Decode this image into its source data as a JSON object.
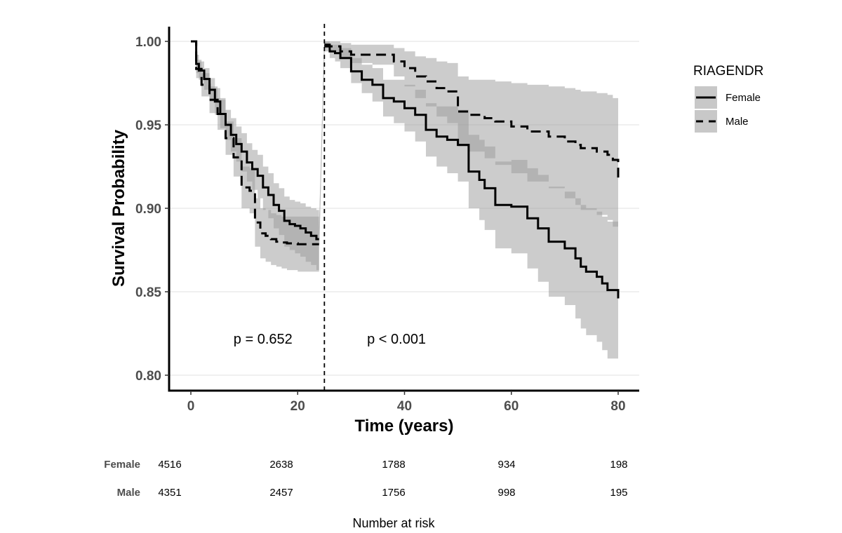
{
  "chart_data": {
    "type": "line",
    "chart_subtype": "kaplan-meier step survival curves with confidence bands",
    "xlabel": "Time (years)",
    "ylabel": "Survival Probability",
    "xlim": [
      -4,
      84
    ],
    "ylim": [
      0.79,
      1.01
    ],
    "x_ticks": [
      0,
      20,
      40,
      60,
      80
    ],
    "x_tick_labels": [
      "0",
      "20",
      "40",
      "60",
      "80"
    ],
    "y_ticks": [
      0.8,
      0.85,
      0.9,
      0.95,
      1.0
    ],
    "y_tick_labels": [
      "0.80",
      "0.85",
      "0.90",
      "0.95",
      "1.00"
    ],
    "grid": "horizontal major gridlines",
    "cutpoint_x": 25,
    "annotations": [
      {
        "text": "p = 0.652",
        "x": 13.5,
        "y": 0.819
      },
      {
        "text": "p < 0.001",
        "x": 38.5,
        "y": 0.819
      }
    ],
    "legend": {
      "title": "RIAGENDR",
      "position": "right"
    },
    "ci_color": "#999999",
    "series": [
      {
        "name": "Female",
        "line_style": "solid",
        "segments": [
          {
            "x": [
              0,
              1,
              1.5,
              2.5,
              3.5,
              4.5,
              5.5,
              6.5,
              7.5,
              8.5,
              9.5,
              10.5,
              11.5,
              12.5,
              13.5,
              14.5,
              15.5,
              16.5,
              17.5,
              18.5,
              19.5,
              20.5,
              21.5,
              22.5,
              23.5,
              24
            ],
            "y": [
              1.0,
              0.9865,
              0.9825,
              0.9775,
              0.971,
              0.964,
              0.9565,
              0.95,
              0.944,
              0.9385,
              0.934,
              0.9275,
              0.9235,
              0.9195,
              0.9125,
              0.908,
              0.902,
              0.8985,
              0.8925,
              0.8905,
              0.8895,
              0.888,
              0.8855,
              0.8835,
              0.8815,
              0.8815
            ],
            "ci_lower": [
              1.0,
              0.981,
              0.977,
              0.971,
              0.964,
              0.956,
              0.948,
              0.941,
              0.934,
              0.928,
              0.922,
              0.916,
              0.911,
              0.906,
              0.899,
              0.894,
              0.888,
              0.884,
              0.877,
              0.875,
              0.873,
              0.871,
              0.868,
              0.866,
              0.863,
              0.863
            ],
            "ci_upper": [
              1.0,
              0.992,
              0.988,
              0.984,
              0.978,
              0.972,
              0.965,
              0.959,
              0.954,
              0.949,
              0.945,
              0.939,
              0.935,
              0.932,
              0.925,
              0.921,
              0.915,
              0.912,
              0.907,
              0.905,
              0.904,
              0.903,
              0.901,
              0.9,
              0.899,
              0.899
            ]
          },
          {
            "x": [
              25,
              26,
              27,
              28,
              30,
              32,
              34,
              36,
              38,
              40,
              42,
              44,
              46,
              48,
              50,
              52,
              54,
              55,
              57,
              60,
              63,
              65,
              67,
              70,
              72,
              73,
              74,
              76,
              77,
              78,
              80
            ],
            "y": [
              0.997,
              0.994,
              0.993,
              0.99,
              0.982,
              0.977,
              0.974,
              0.966,
              0.964,
              0.96,
              0.956,
              0.947,
              0.943,
              0.941,
              0.938,
              0.922,
              0.917,
              0.912,
              0.902,
              0.901,
              0.894,
              0.888,
              0.88,
              0.876,
              0.87,
              0.865,
              0.862,
              0.859,
              0.855,
              0.851,
              0.846
            ],
            "ci_lower": [
              0.994,
              0.99,
              0.988,
              0.984,
              0.975,
              0.969,
              0.964,
              0.955,
              0.951,
              0.946,
              0.94,
              0.931,
              0.925,
              0.921,
              0.916,
              0.9,
              0.893,
              0.887,
              0.876,
              0.873,
              0.864,
              0.856,
              0.847,
              0.842,
              0.834,
              0.828,
              0.824,
              0.82,
              0.815,
              0.81,
              0.807
            ],
            "ci_upper": [
              1.0,
              0.998,
              0.998,
              0.996,
              0.99,
              0.986,
              0.984,
              0.977,
              0.977,
              0.974,
              0.971,
              0.963,
              0.961,
              0.961,
              0.959,
              0.944,
              0.941,
              0.937,
              0.928,
              0.929,
              0.924,
              0.92,
              0.913,
              0.91,
              0.906,
              0.902,
              0.9,
              0.898,
              0.895,
              0.892,
              0.885
            ]
          }
        ]
      },
      {
        "name": "Male",
        "line_style": "dashed",
        "segments": [
          {
            "x": [
              0,
              1,
              2,
              3.5,
              5,
              6.5,
              8,
              9.5,
              11,
              12,
              13,
              14,
              15,
              16,
              17,
              18,
              20,
              22,
              24
            ],
            "y": [
              1.0,
              0.9835,
              0.974,
              0.965,
              0.9565,
              0.942,
              0.9305,
              0.9125,
              0.9105,
              0.8915,
              0.885,
              0.8835,
              0.8815,
              0.88,
              0.8795,
              0.879,
              0.8785,
              0.8785,
              0.8785
            ],
            "ci_lower": [
              1.0,
              0.978,
              0.967,
              0.957,
              0.947,
              0.932,
              0.919,
              0.9,
              0.897,
              0.877,
              0.87,
              0.868,
              0.866,
              0.865,
              0.864,
              0.863,
              0.862,
              0.862,
              0.862
            ],
            "ci_upper": [
              1.0,
              0.989,
              0.981,
              0.973,
              0.966,
              0.952,
              0.942,
              0.925,
              0.924,
              0.906,
              0.9,
              0.899,
              0.897,
              0.896,
              0.895,
              0.895,
              0.895,
              0.895,
              0.895
            ]
          },
          {
            "x": [
              25,
              26,
              28,
              30,
              34,
              38,
              40,
              42,
              44,
              46,
              48,
              50,
              52,
              55,
              57,
              60,
              63,
              67,
              70,
              72,
              73,
              76,
              78,
              79,
              80
            ],
            "y": [
              0.998,
              0.997,
              0.994,
              0.992,
              0.992,
              0.988,
              0.984,
              0.979,
              0.976,
              0.972,
              0.97,
              0.958,
              0.956,
              0.954,
              0.952,
              0.949,
              0.946,
              0.943,
              0.94,
              0.938,
              0.936,
              0.934,
              0.932,
              0.929,
              0.917
            ],
            "ci_lower": [
              0.996,
              0.994,
              0.99,
              0.987,
              0.986,
              0.979,
              0.973,
              0.966,
              0.961,
              0.955,
              0.951,
              0.937,
              0.934,
              0.93,
              0.926,
              0.921,
              0.916,
              0.912,
              0.906,
              0.902,
              0.899,
              0.896,
              0.893,
              0.889,
              0.881
            ],
            "ci_upper": [
              1.0,
              1.0,
              0.999,
              0.998,
              0.998,
              0.996,
              0.994,
              0.991,
              0.99,
              0.988,
              0.987,
              0.979,
              0.977,
              0.977,
              0.976,
              0.975,
              0.974,
              0.973,
              0.972,
              0.971,
              0.97,
              0.969,
              0.968,
              0.966,
              0.955
            ]
          }
        ]
      }
    ]
  },
  "risk_table": {
    "title": "Number at risk",
    "times": [
      0,
      20,
      40,
      60,
      80
    ],
    "rows": [
      {
        "group": "Female",
        "counts": [
          "4516",
          "2638",
          "1788",
          "934",
          "198"
        ]
      },
      {
        "group": "Male",
        "counts": [
          "4351",
          "2457",
          "1756",
          "998",
          "195"
        ]
      }
    ]
  }
}
